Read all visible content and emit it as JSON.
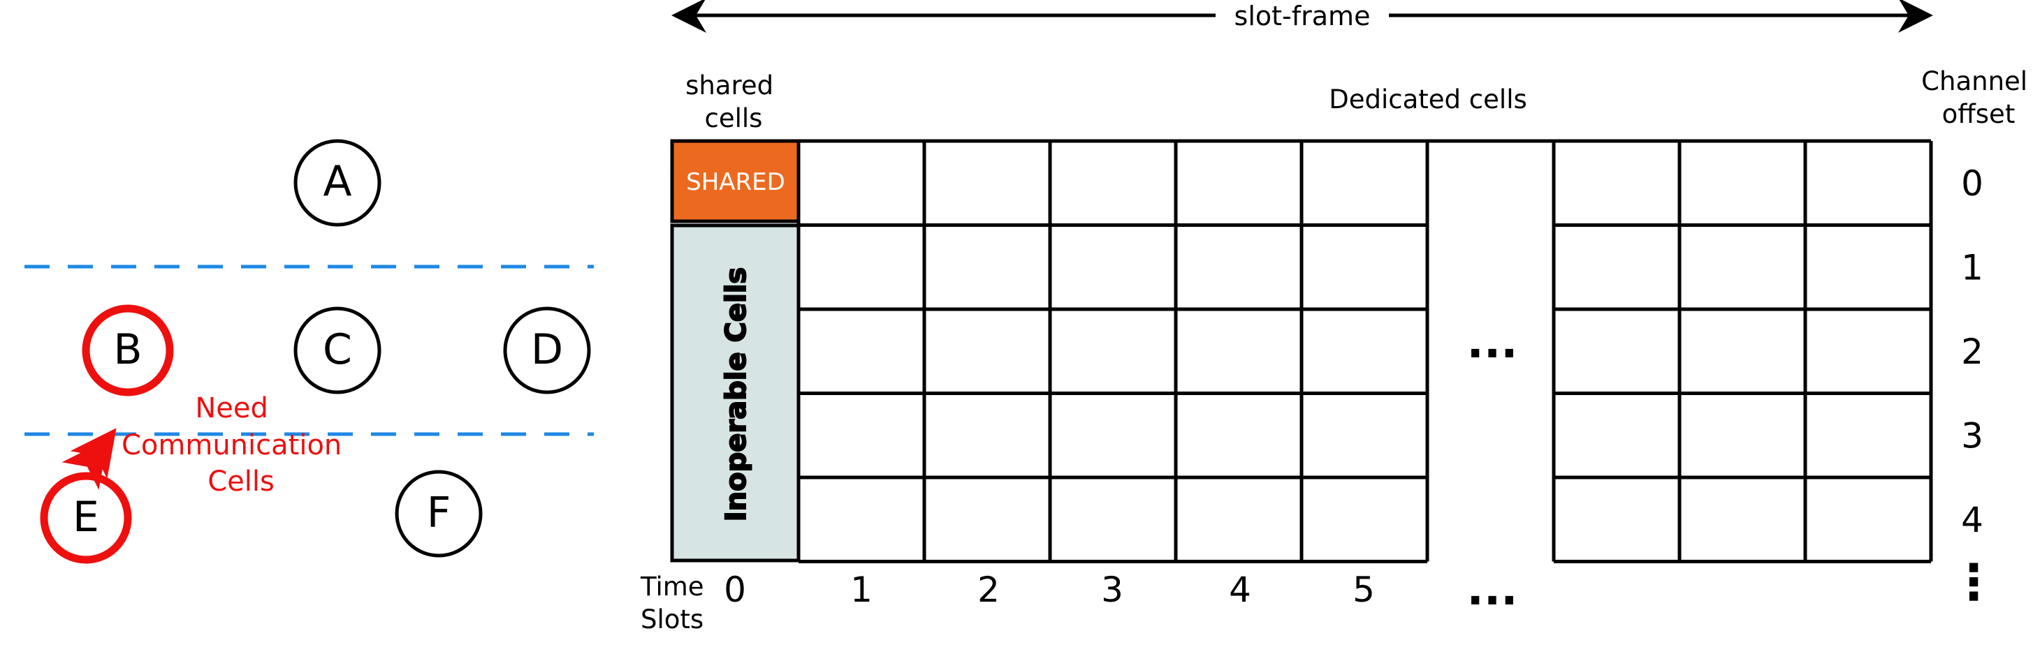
{
  "network": {
    "nodes": [
      {
        "id": "A",
        "label": "A",
        "highlight": false
      },
      {
        "id": "B",
        "label": "B",
        "highlight": true
      },
      {
        "id": "C",
        "label": "C",
        "highlight": false
      },
      {
        "id": "D",
        "label": "D",
        "highlight": false
      },
      {
        "id": "E",
        "label": "E",
        "highlight": true
      },
      {
        "id": "F",
        "label": "F",
        "highlight": false
      }
    ],
    "link_label": [
      "Need",
      "Communication",
      "Cells"
    ],
    "link_from": "E",
    "link_to": "B",
    "highlight_color": "#ee0f0f",
    "layer_line_color": "#1e88e5"
  },
  "slotframe": {
    "title": "slot-frame",
    "shared_header": [
      "shared",
      "cells"
    ],
    "dedicated_header": "Dedicated cells",
    "channel_header": [
      "Channel",
      "offset"
    ],
    "shared_cell_label": "SHARED",
    "inoperable_label": "Inoperable Cells",
    "channel_offsets": [
      "0",
      "1",
      "2",
      "3",
      "4"
    ],
    "channel_more": "⋮",
    "time_header": [
      "Time",
      "Slots"
    ],
    "time_slots": [
      "0",
      "1",
      "2",
      "3",
      "4",
      "5"
    ],
    "time_more": "...",
    "grid_more": "...",
    "shared_color": "#ec6a1f",
    "inoperable_color": "#d7e4e4"
  }
}
